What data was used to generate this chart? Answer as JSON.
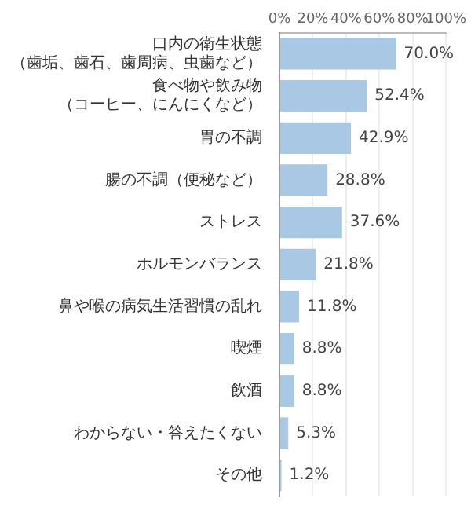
{
  "chart_data": {
    "type": "bar",
    "orientation": "horizontal",
    "categories": [
      "口内の衛生状態（歯垢、歯石、歯周病、虫歯など）",
      "食べ物や飲み物（コーヒー、にんにくなど）",
      "胃の不調",
      "腸の不調（便秘など）",
      "ストレス",
      "ホルモンバランス",
      "鼻や喉の病気生活習慣の乱れ",
      "喫煙",
      "飲酒",
      "わからない・答えたくない",
      "その他"
    ],
    "values": [
      70.0,
      52.4,
      42.9,
      28.8,
      37.6,
      21.8,
      11.8,
      8.8,
      8.8,
      5.3,
      1.2
    ],
    "value_labels": [
      "70.0%",
      "52.4%",
      "42.9%",
      "28.8%",
      "37.6%",
      "21.8%",
      "11.8%",
      "8.8%",
      "8.8%",
      "5.3%",
      "1.2%"
    ],
    "color": "#a9c8e4",
    "xlim": [
      0,
      100
    ],
    "xticks": [
      {
        "value": 0,
        "label": "0%"
      },
      {
        "value": 20,
        "label": "20%"
      },
      {
        "value": 40,
        "label": "40%"
      },
      {
        "value": 60,
        "label": "60%"
      },
      {
        "value": 80,
        "label": "80%"
      },
      {
        "value": 100,
        "label": "100%"
      }
    ],
    "grid": "x",
    "legend": false
  }
}
